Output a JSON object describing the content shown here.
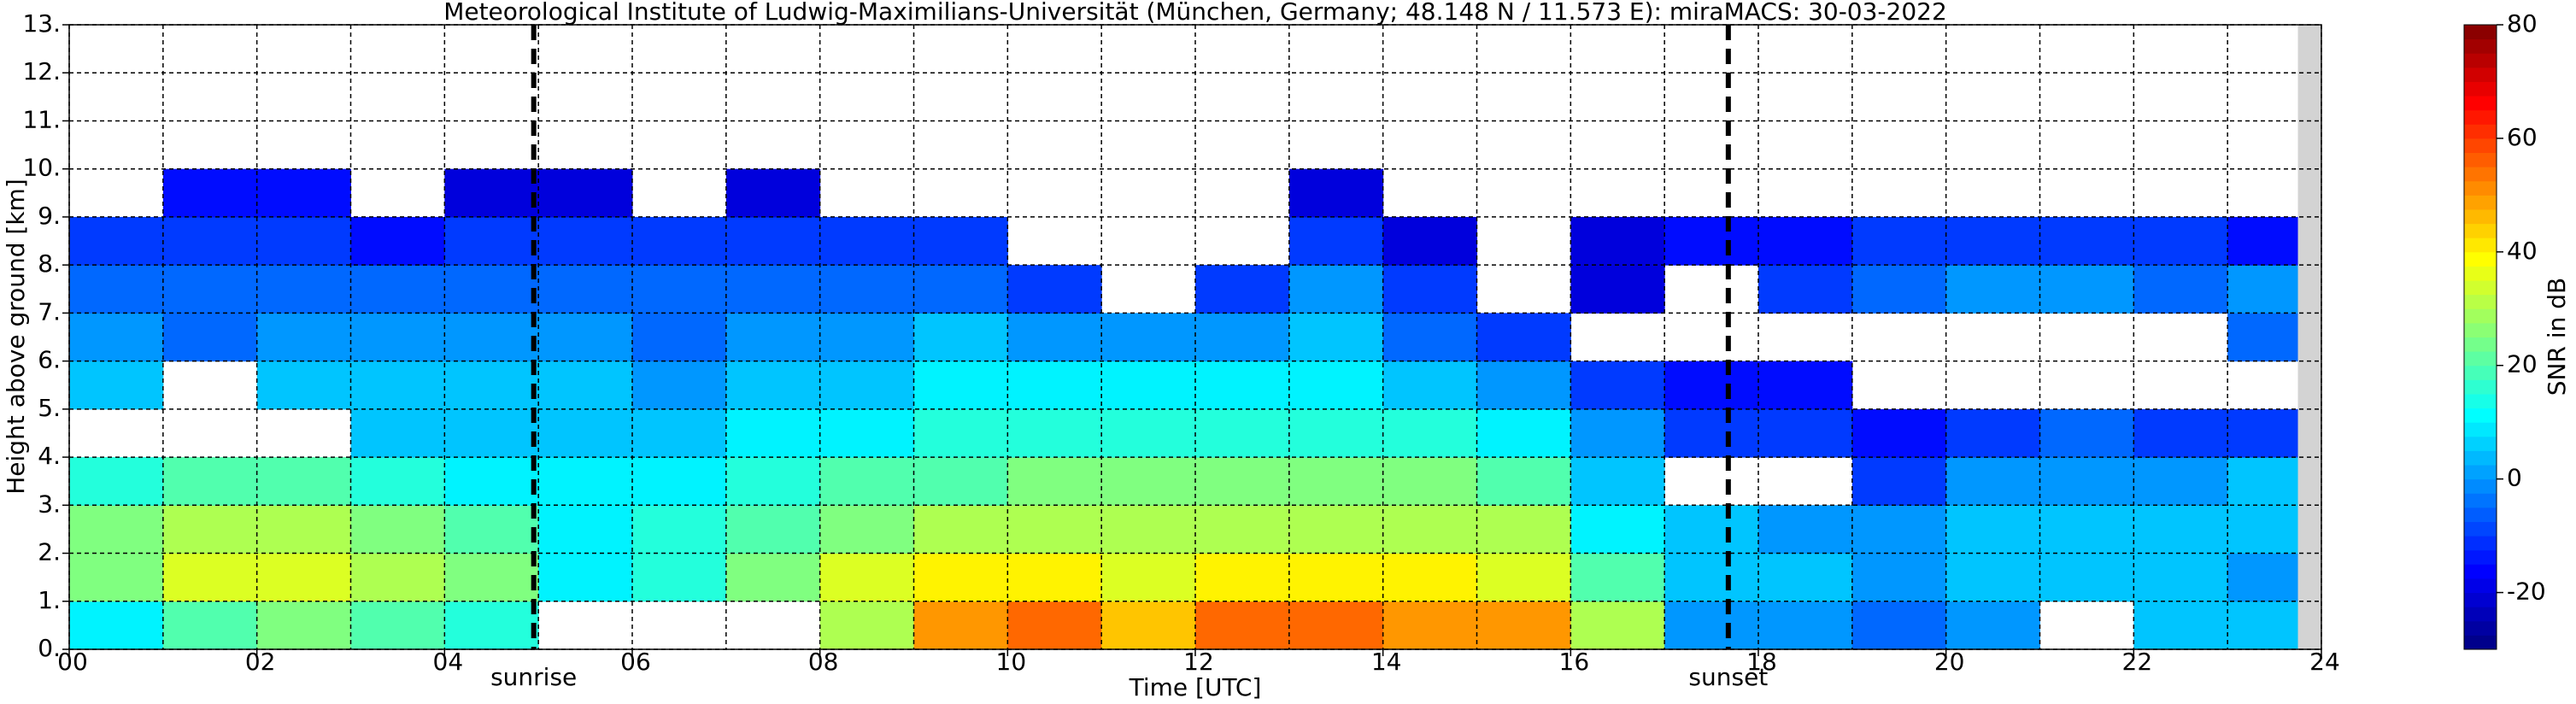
{
  "chart_data": {
    "type": "heatmap",
    "title": "Meteorological Institute of Ludwig-Maximilians-Universität (München, Germany; 48.148 N / 11.573 E):    miraMACS: 30-03-2022",
    "xlabel": "Time [UTC]",
    "ylabel": "Height above ground [km]",
    "colormap": "jet",
    "grid": true,
    "xbins": [
      0,
      1,
      2,
      3,
      4,
      5,
      6,
      7,
      8,
      9,
      10,
      11,
      12,
      13,
      14,
      15,
      16,
      17,
      18,
      19,
      20,
      21,
      22,
      23,
      24
    ],
    "ybins": [
      0,
      1,
      2,
      3,
      4,
      5,
      6,
      7,
      8,
      9,
      10,
      11,
      12,
      13
    ],
    "values": [
      [
        10,
        20,
        25,
        20,
        15,
        null,
        null,
        null,
        30,
        50,
        55,
        45,
        55,
        55,
        50,
        50,
        30,
        0,
        0,
        -5,
        0,
        null,
        5,
        5
      ],
      [
        25,
        35,
        35,
        30,
        25,
        10,
        15,
        25,
        35,
        40,
        40,
        35,
        40,
        40,
        40,
        35,
        20,
        5,
        5,
        0,
        5,
        5,
        5,
        0
      ],
      [
        25,
        30,
        30,
        25,
        20,
        10,
        15,
        20,
        25,
        30,
        30,
        30,
        30,
        30,
        30,
        30,
        10,
        5,
        0,
        0,
        5,
        5,
        5,
        5
      ],
      [
        15,
        20,
        20,
        15,
        10,
        10,
        10,
        15,
        20,
        20,
        25,
        25,
        25,
        25,
        25,
        20,
        5,
        null,
        null,
        -10,
        0,
        0,
        0,
        5
      ],
      [
        null,
        null,
        null,
        5,
        5,
        5,
        5,
        10,
        10,
        15,
        15,
        15,
        15,
        15,
        15,
        10,
        0,
        -10,
        -10,
        -15,
        -10,
        -5,
        -10,
        -10
      ],
      [
        5,
        null,
        5,
        5,
        5,
        5,
        0,
        5,
        5,
        10,
        10,
        10,
        10,
        10,
        5,
        0,
        -10,
        -15,
        -15,
        null,
        null,
        null,
        null,
        null
      ],
      [
        0,
        -5,
        0,
        0,
        0,
        0,
        -5,
        0,
        0,
        5,
        0,
        0,
        0,
        5,
        -5,
        -10,
        null,
        null,
        null,
        null,
        null,
        null,
        null,
        -5
      ],
      [
        -5,
        -5,
        -5,
        -5,
        -5,
        -5,
        -5,
        -5,
        -5,
        -5,
        -10,
        null,
        -10,
        0,
        -10,
        null,
        -20,
        null,
        -10,
        -5,
        0,
        0,
        -5,
        0
      ],
      [
        -10,
        -10,
        -10,
        -15,
        -10,
        -10,
        -10,
        -10,
        -10,
        -10,
        null,
        null,
        null,
        -10,
        -20,
        null,
        -20,
        -15,
        -15,
        -10,
        -10,
        -10,
        -10,
        -15
      ],
      [
        null,
        -15,
        -15,
        null,
        -20,
        -20,
        null,
        -20,
        null,
        null,
        null,
        null,
        null,
        -20,
        null,
        null,
        null,
        null,
        null,
        null,
        null,
        null,
        null,
        null
      ],
      [
        null,
        null,
        null,
        null,
        null,
        null,
        null,
        null,
        null,
        null,
        null,
        null,
        null,
        null,
        null,
        null,
        null,
        null,
        null,
        null,
        null,
        null,
        null,
        null
      ],
      [
        null,
        null,
        null,
        null,
        null,
        null,
        null,
        null,
        null,
        null,
        null,
        null,
        null,
        null,
        null,
        null,
        null,
        null,
        null,
        null,
        null,
        null,
        null,
        null
      ],
      [
        null,
        null,
        null,
        null,
        null,
        null,
        null,
        null,
        null,
        null,
        null,
        null,
        null,
        null,
        null,
        null,
        null,
        null,
        null,
        null,
        null,
        null,
        null,
        null
      ]
    ],
    "no_data_from": 23.75,
    "xlim": [
      0,
      24
    ],
    "xticks": [
      {
        "value": 0,
        "label": "00"
      },
      {
        "value": 2,
        "label": "02"
      },
      {
        "value": 4,
        "label": "04"
      },
      {
        "value": 6,
        "label": "06"
      },
      {
        "value": 8,
        "label": "08"
      },
      {
        "value": 10,
        "label": "10"
      },
      {
        "value": 12,
        "label": "12"
      },
      {
        "value": 14,
        "label": "14"
      },
      {
        "value": 16,
        "label": "16"
      },
      {
        "value": 18,
        "label": "18"
      },
      {
        "value": 20,
        "label": "20"
      },
      {
        "value": 22,
        "label": "22"
      },
      {
        "value": 24,
        "label": "24"
      }
    ],
    "xminor": [
      1,
      3,
      5,
      7,
      9,
      11,
      13,
      15,
      17,
      19,
      21,
      23
    ],
    "ylim": [
      0,
      13
    ],
    "yticks": [
      {
        "value": 0,
        "label": "0."
      },
      {
        "value": 1,
        "label": "1."
      },
      {
        "value": 2,
        "label": "2."
      },
      {
        "value": 3,
        "label": "3."
      },
      {
        "value": 4,
        "label": "4."
      },
      {
        "value": 5,
        "label": "5."
      },
      {
        "value": 6,
        "label": "6."
      },
      {
        "value": 7,
        "label": "7."
      },
      {
        "value": 8,
        "label": "8."
      },
      {
        "value": 9,
        "label": "9."
      },
      {
        "value": 10,
        "label": "10."
      },
      {
        "value": 11,
        "label": "11."
      },
      {
        "value": 12,
        "label": "12."
      },
      {
        "value": 13,
        "label": "13."
      }
    ],
    "annotations": [
      {
        "x": 4.95,
        "text": "sunrise"
      },
      {
        "x": 17.68,
        "text": "sunset"
      }
    ],
    "colorbar": {
      "label": "SNR in dB",
      "lim": [
        -30,
        80
      ],
      "ticks": [
        -20,
        0,
        20,
        40,
        60,
        80
      ]
    }
  }
}
